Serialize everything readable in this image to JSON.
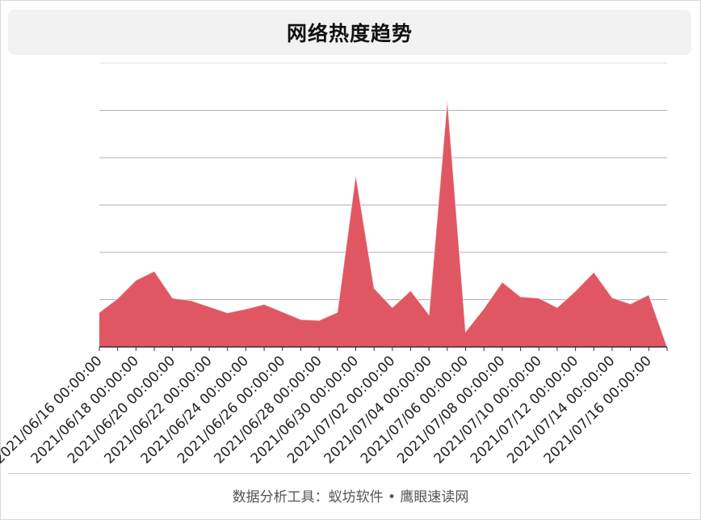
{
  "title": "网络热度趋势",
  "footer": "数据分析工具：蚁坊软件 • 鹰眼速读网",
  "colors": {
    "area": "#e05763",
    "grid": "#aaaaaa",
    "axis": "#333333"
  },
  "chart_data": {
    "type": "area",
    "title": "网络热度趋势",
    "xlabel": "",
    "ylabel": "",
    "grid": true,
    "ylim": [
      0,
      60
    ],
    "x": [
      "2021/06/16 00:00:00",
      "2021/06/17 00:00:00",
      "2021/06/18 00:00:00",
      "2021/06/19 00:00:00",
      "2021/06/20 00:00:00",
      "2021/06/21 00:00:00",
      "2021/06/22 00:00:00",
      "2021/06/23 00:00:00",
      "2021/06/24 00:00:00",
      "2021/06/25 00:00:00",
      "2021/06/26 00:00:00",
      "2021/06/27 00:00:00",
      "2021/06/28 00:00:00",
      "2021/06/29 00:00:00",
      "2021/06/30 00:00:00",
      "2021/07/01 00:00:00",
      "2021/07/02 00:00:00",
      "2021/07/03 00:00:00",
      "2021/07/04 00:00:00",
      "2021/07/05 00:00:00",
      "2021/07/06 00:00:00",
      "2021/07/07 00:00:00",
      "2021/07/08 00:00:00",
      "2021/07/09 00:00:00",
      "2021/07/10 00:00:00",
      "2021/07/11 00:00:00",
      "2021/07/12 00:00:00",
      "2021/07/13 00:00:00",
      "2021/07/14 00:00:00",
      "2021/07/15 00:00:00",
      "2021/07/16 00:00:00",
      "2021/07/17 00:00:00"
    ],
    "tick_labels": [
      "2021/06/16 00:00:00",
      "2021/06/18 00:00:00",
      "2021/06/20 00:00:00",
      "2021/06/22 00:00:00",
      "2021/06/24 00:00:00",
      "2021/06/26 00:00:00",
      "2021/06/28 00:00:00",
      "2021/06/30 00:00:00",
      "2021/07/02 00:00:00",
      "2021/07/04 00:00:00",
      "2021/07/06 00:00:00",
      "2021/07/08 00:00:00",
      "2021/07/10 00:00:00",
      "2021/07/12 00:00:00",
      "2021/07/14 00:00:00",
      "2021/07/16 00:00:00"
    ],
    "series": [
      {
        "name": "",
        "values": [
          7.3,
          10.2,
          14.1,
          16.0,
          10.3,
          9.8,
          8.5,
          7.2,
          8.0,
          9.0,
          7.4,
          5.8,
          5.6,
          7.3,
          36.3,
          12.4,
          8.3,
          11.9,
          6.8,
          52.2,
          3.2,
          8.1,
          13.7,
          10.6,
          10.3,
          8.3,
          11.8,
          15.8,
          10.4,
          9.1,
          11.0,
          0
        ]
      }
    ]
  }
}
